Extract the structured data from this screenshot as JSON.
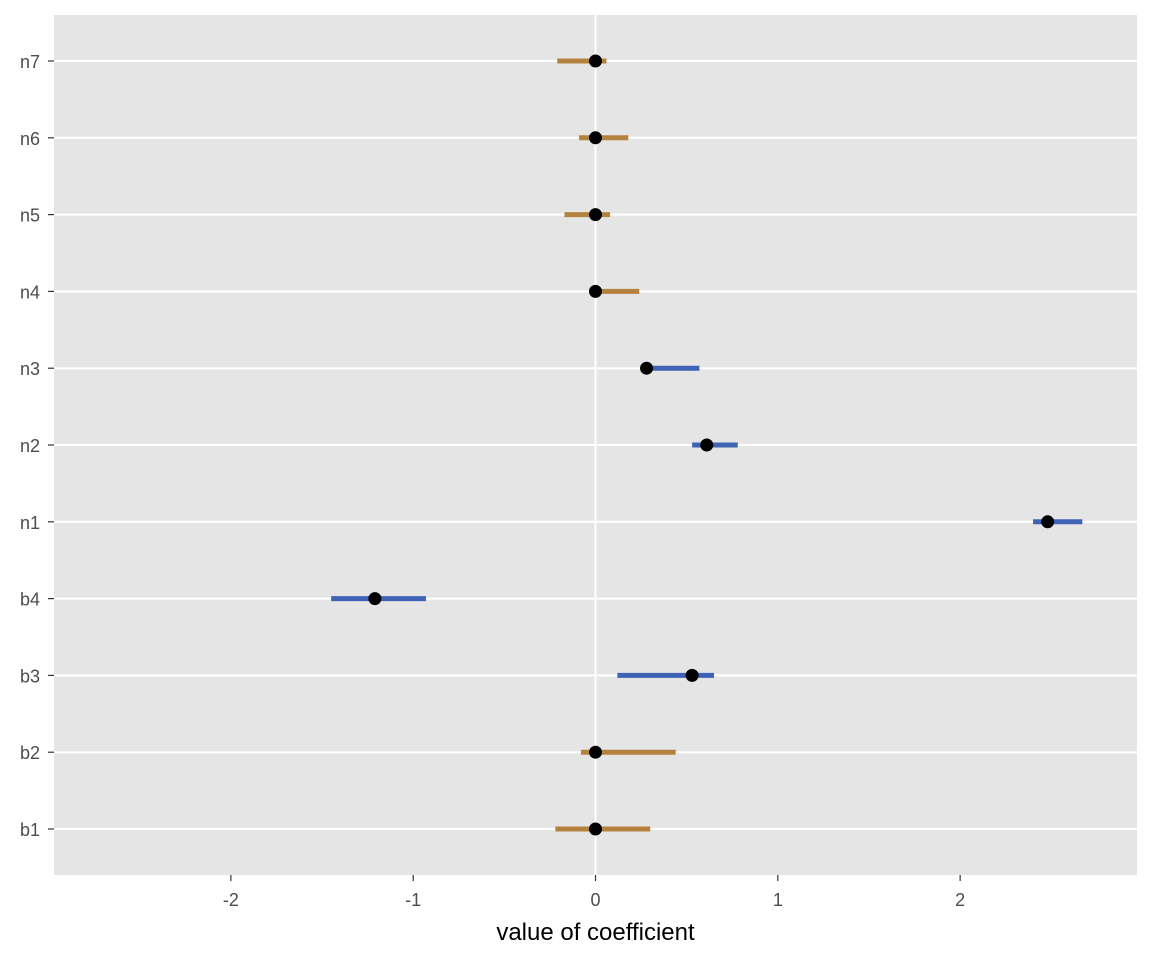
{
  "chart_data": {
    "type": "dot-interval",
    "xlabel": "value of coefficient",
    "xlim": [
      -2.97,
      2.97
    ],
    "x_ticks": [
      -2,
      -1,
      0,
      1,
      2
    ],
    "x_tick_labels": [
      "-2",
      "-1",
      "0",
      "1",
      "2"
    ],
    "vline_x": 0,
    "grid": true,
    "categories": [
      "b1",
      "b2",
      "b3",
      "b4",
      "n1",
      "n2",
      "n3",
      "n4",
      "n5",
      "n6",
      "n7"
    ],
    "points": [
      {
        "label": "b1",
        "value": 0.0,
        "low": -0.22,
        "high": 0.3,
        "group": "orange"
      },
      {
        "label": "b2",
        "value": 0.0,
        "low": -0.08,
        "high": 0.44,
        "group": "orange"
      },
      {
        "label": "b3",
        "value": 0.53,
        "low": 0.12,
        "high": 0.65,
        "group": "blue"
      },
      {
        "label": "b4",
        "value": -1.21,
        "low": -1.45,
        "high": -0.93,
        "group": "blue"
      },
      {
        "label": "n1",
        "value": 2.48,
        "low": 2.4,
        "high": 2.67,
        "group": "blue"
      },
      {
        "label": "n2",
        "value": 0.61,
        "low": 0.53,
        "high": 0.78,
        "group": "blue"
      },
      {
        "label": "n3",
        "value": 0.28,
        "low": 0.28,
        "high": 0.57,
        "group": "blue"
      },
      {
        "label": "n4",
        "value": 0.0,
        "low": 0.0,
        "high": 0.24,
        "group": "orange"
      },
      {
        "label": "n5",
        "value": 0.0,
        "low": -0.17,
        "high": 0.08,
        "group": "orange"
      },
      {
        "label": "n6",
        "value": 0.0,
        "low": -0.09,
        "high": 0.18,
        "group": "orange"
      },
      {
        "label": "n7",
        "value": 0.0,
        "low": -0.21,
        "high": 0.06,
        "group": "orange"
      }
    ],
    "colors": {
      "orange": "#b5823e",
      "blue": "#3e63b6",
      "point": "#000000",
      "panel": "#e5e5e5",
      "grid": "#ffffff"
    }
  }
}
